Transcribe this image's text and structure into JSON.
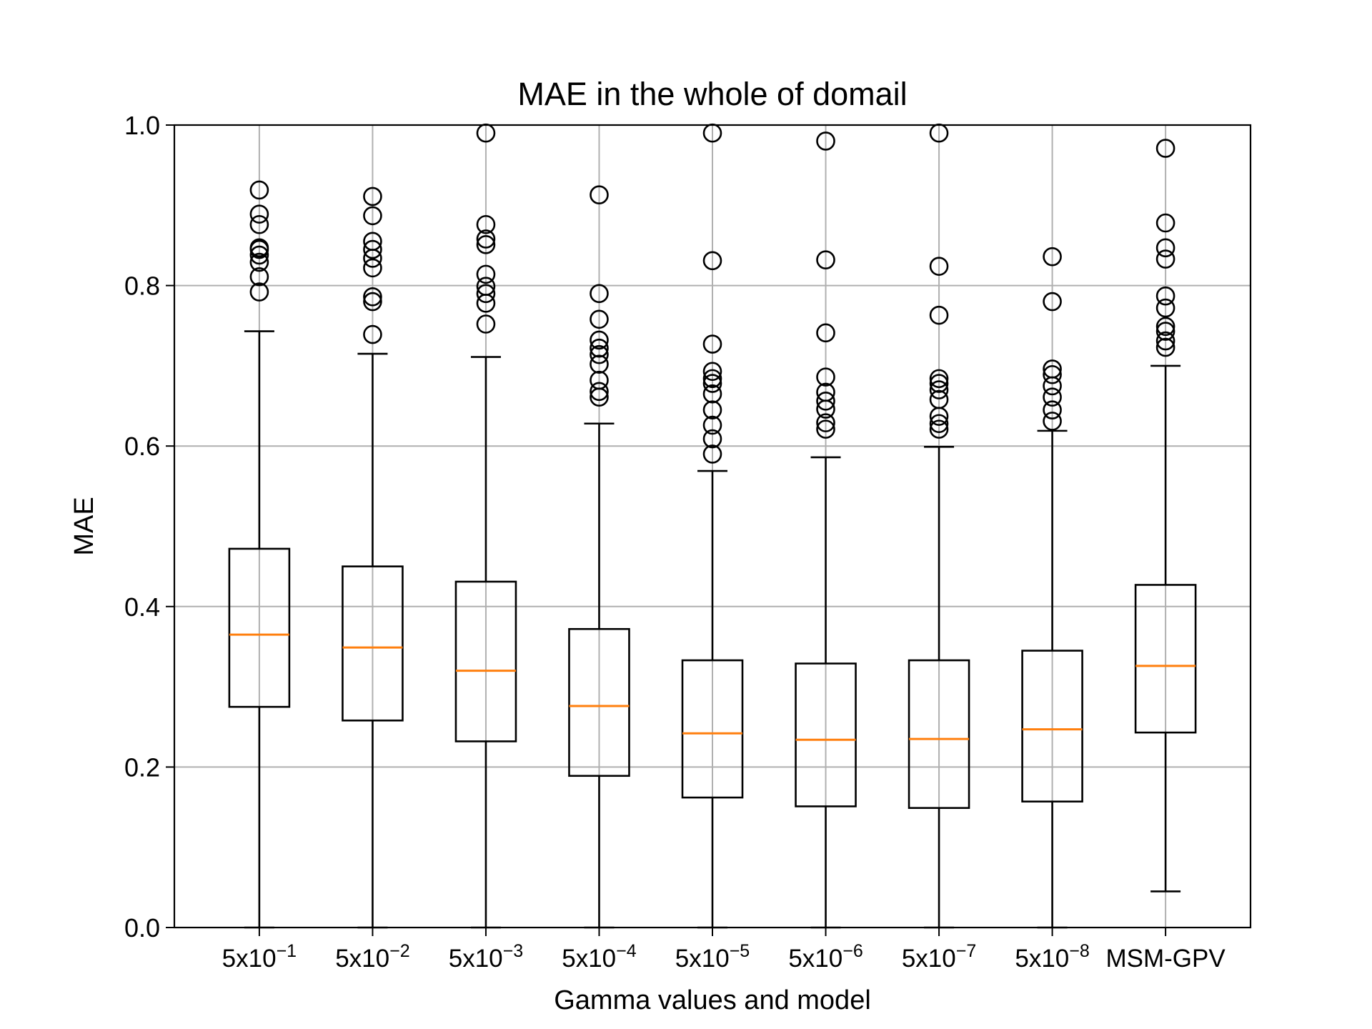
{
  "chart_data": {
    "type": "boxplot",
    "title": "MAE in the whole of domail",
    "xlabel": "Gamma values and model",
    "ylabel": "MAE",
    "ylim": [
      0.0,
      1.0
    ],
    "yticks": [
      "0.0",
      "0.2",
      "0.4",
      "0.6",
      "0.8",
      "1.0"
    ],
    "grid": true,
    "categories": [
      {
        "base": "5x10",
        "exp": "−1"
      },
      {
        "base": "5x10",
        "exp": "−2"
      },
      {
        "base": "5x10",
        "exp": "−3"
      },
      {
        "base": "5x10",
        "exp": "−4"
      },
      {
        "base": "5x10",
        "exp": "−5"
      },
      {
        "base": "5x10",
        "exp": "−6"
      },
      {
        "base": "5x10",
        "exp": "−7"
      },
      {
        "base": "5x10",
        "exp": "−8"
      },
      {
        "base": "MSM-GPV",
        "exp": ""
      }
    ],
    "boxes": [
      {
        "whisker_low": 0.0,
        "q1": 0.275,
        "median": 0.365,
        "q3": 0.472,
        "whisker_high": 0.743,
        "outliers": [
          0.792,
          0.811,
          0.829,
          0.838,
          0.845,
          0.847,
          0.876,
          0.889,
          0.919
        ]
      },
      {
        "whisker_low": 0.0,
        "q1": 0.258,
        "median": 0.349,
        "q3": 0.45,
        "whisker_high": 0.715,
        "outliers": [
          0.739,
          0.78,
          0.786,
          0.822,
          0.834,
          0.845,
          0.855,
          0.887,
          0.911
        ]
      },
      {
        "whisker_low": 0.0,
        "q1": 0.232,
        "median": 0.32,
        "q3": 0.431,
        "whisker_high": 0.711,
        "outliers": [
          0.752,
          0.778,
          0.79,
          0.799,
          0.814,
          0.851,
          0.858,
          0.876,
          0.99
        ]
      },
      {
        "whisker_low": 0.0,
        "q1": 0.189,
        "median": 0.276,
        "q3": 0.372,
        "whisker_high": 0.628,
        "outliers": [
          0.661,
          0.668,
          0.682,
          0.702,
          0.714,
          0.722,
          0.732,
          0.758,
          0.79,
          0.913
        ]
      },
      {
        "whisker_low": 0.0,
        "q1": 0.162,
        "median": 0.242,
        "q3": 0.333,
        "whisker_high": 0.569,
        "outliers": [
          0.59,
          0.609,
          0.626,
          0.645,
          0.665,
          0.678,
          0.684,
          0.693,
          0.727,
          0.831,
          0.99
        ]
      },
      {
        "whisker_low": 0.0,
        "q1": 0.151,
        "median": 0.234,
        "q3": 0.329,
        "whisker_high": 0.586,
        "outliers": [
          0.621,
          0.629,
          0.646,
          0.656,
          0.667,
          0.686,
          0.741,
          0.832,
          0.98
        ]
      },
      {
        "whisker_low": 0.0,
        "q1": 0.149,
        "median": 0.235,
        "q3": 0.333,
        "whisker_high": 0.599,
        "outliers": [
          0.621,
          0.628,
          0.637,
          0.658,
          0.67,
          0.678,
          0.684,
          0.763,
          0.824,
          0.99
        ]
      },
      {
        "whisker_low": 0.0,
        "q1": 0.157,
        "median": 0.247,
        "q3": 0.345,
        "whisker_high": 0.619,
        "outliers": [
          0.631,
          0.645,
          0.661,
          0.675,
          0.689,
          0.696,
          0.78,
          0.836
        ]
      },
      {
        "whisker_low": 0.045,
        "q1": 0.243,
        "median": 0.326,
        "q3": 0.427,
        "whisker_high": 0.7,
        "outliers": [
          0.723,
          0.731,
          0.743,
          0.749,
          0.772,
          0.787,
          0.833,
          0.847,
          0.878,
          0.971
        ]
      }
    ],
    "colors": {
      "box": "#000000",
      "median": "#ff7f0e",
      "grid": "#b0b0b0",
      "outlier": "#000000"
    }
  }
}
